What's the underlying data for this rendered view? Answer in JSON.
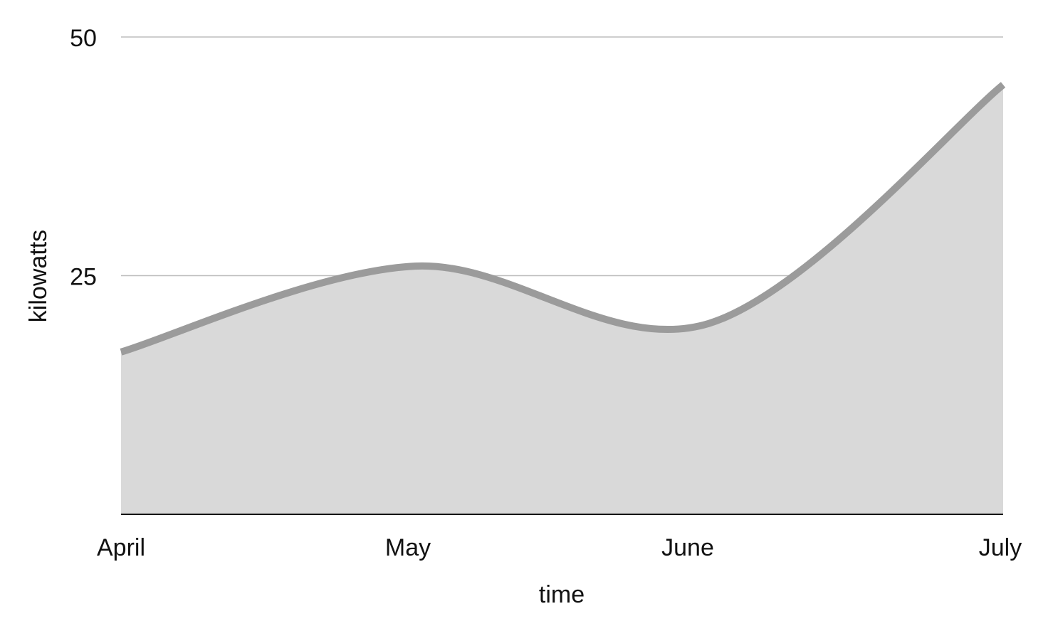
{
  "chart_data": {
    "type": "area",
    "categories": [
      "April",
      "May",
      "June",
      "July"
    ],
    "series": [
      {
        "values": [
          17,
          26,
          20,
          45
        ]
      }
    ],
    "xlabel": "time",
    "ylabel": "kilowatts",
    "ylim": [
      0,
      50
    ],
    "yticks": [
      25,
      50
    ],
    "grid": true,
    "colors": {
      "line": "#9b9b9b",
      "fill": "#d9d9d9",
      "grid": "#bdbdbd",
      "axis": "#000000"
    }
  }
}
